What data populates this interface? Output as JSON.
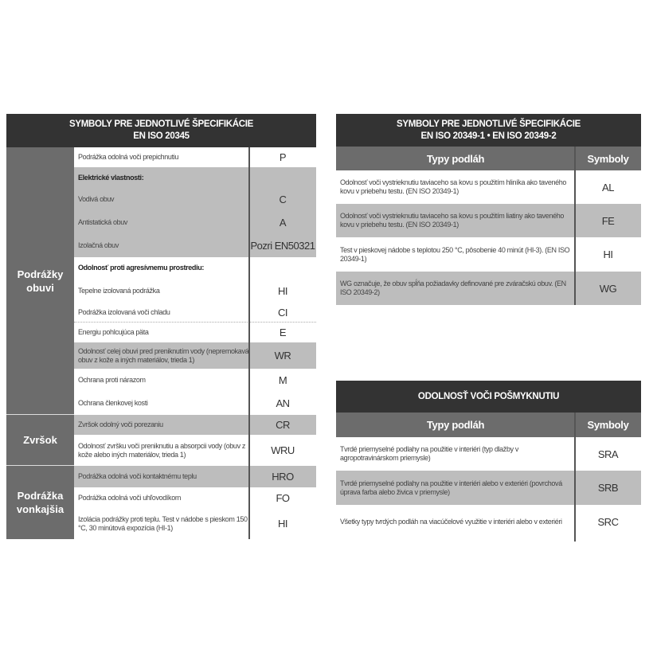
{
  "left_table": {
    "title_line1": "SYMBOLY PRE JEDNOTLIVÉ ŠPECIFIKÁCIE",
    "title_line2": "EN ISO 20345",
    "categories": [
      {
        "label_line1": "Podrážky",
        "label_line2": "obuvi"
      },
      {
        "label_line1": "Zvršok",
        "label_line2": ""
      },
      {
        "label_line1": "Podrážka",
        "label_line2": "vonkajšia"
      }
    ],
    "rows": [
      {
        "desc": "Podrážka odolná voči prepichnutiu",
        "symbol": "P"
      },
      {
        "desc": "Elektrické vlastnosti:",
        "symbol": ""
      },
      {
        "desc": "Vodivá obuv",
        "symbol": "C"
      },
      {
        "desc": "Antistatická obuv",
        "symbol": "A"
      },
      {
        "desc": "Izolačná obuv",
        "symbol": "Pozri EN50321"
      },
      {
        "desc": "Odolnosť proti agresívnemu prostrediu:",
        "symbol": ""
      },
      {
        "desc": "Tepelne izolovaná podrážka",
        "symbol": "HI"
      },
      {
        "desc": "Podrážka izolovaná voči chladu",
        "symbol": "CI"
      },
      {
        "desc": "Energiu pohlcujúca päta",
        "symbol": "E"
      },
      {
        "desc": "Odolnosť celej obuvi pred preniknutím vody (nepremokavá obuv z kože a iných materiálov, trieda 1)",
        "symbol": "WR"
      },
      {
        "desc": "Ochrana proti nárazom",
        "symbol": "M"
      },
      {
        "desc": "Ochrana členkovej kosti",
        "symbol": "AN"
      },
      {
        "desc": "Zvršok odolný voči porezaniu",
        "symbol": "CR"
      },
      {
        "desc": "Odolnosť zvršku voči preniknutiu a absorpcii vody (obuv z kože alebo iných materiálov, trieda 1)",
        "symbol": "WRU"
      },
      {
        "desc": "Podrážka odolná voči kontaktnému teplu",
        "symbol": "HRO"
      },
      {
        "desc": "Podrážka odolná voči uhľovodíkom",
        "symbol": "FO"
      },
      {
        "desc": "Izolácia podrážky proti teplu. Test v nádobe s pieskom 150 °C, 30 minútová expozícia (HI-1)",
        "symbol": "HI"
      }
    ]
  },
  "right_top_table": {
    "title_line1": "SYMBOLY PRE JEDNOTLIVÉ ŠPECIFIKÁCIE",
    "title_line2": "EN ISO 20349-1 • EN ISO 20349-2",
    "col1": "Typy podláh",
    "col2": "Symboly",
    "rows": [
      {
        "desc": "Odolnosť voči vystrieknutiu taviaceho sa kovu s použitím hliníka ako taveného kovu v priebehu testu. (EN ISO 20349-1)",
        "symbol": "AL"
      },
      {
        "desc": "Odolnosť voči vystrieknutiu taviaceho sa kovu s použitím liatiny ako taveného kovu v priebehu testu. (EN ISO 20349-1)",
        "symbol": "FE"
      },
      {
        "desc": "Test v pieskovej nádobe s teplotou 250 °C, pôsobenie 40 minút (HI-3). (EN ISO 20349-1)",
        "symbol": "HI"
      },
      {
        "desc": "WG označuje, že obuv spĺňa požiadavky definované pre zváračskú obuv. (EN ISO 20349-2)",
        "symbol": "WG"
      }
    ]
  },
  "right_bottom_table": {
    "title": "ODOLNOSŤ VOČI POŠMYKNUTIU",
    "col1": "Typy podláh",
    "col2": "Symboly",
    "rows": [
      {
        "desc": "Tvrdé priemyselné podlahy na použitie v interiéri (typ dlažby v agropotravinárskom priemysle)",
        "symbol": "SRA"
      },
      {
        "desc": "Tvrdé priemyselné podlahy na použitie v interiéri alebo v exteriéri (povrchová úprava farba alebo živica v priemysle)",
        "symbol": "SRB"
      },
      {
        "desc": "Všetky typy tvrdých podláh na viacúčelové využitie v interiéri alebo v exteriéri",
        "symbol": "SRC"
      }
    ]
  }
}
